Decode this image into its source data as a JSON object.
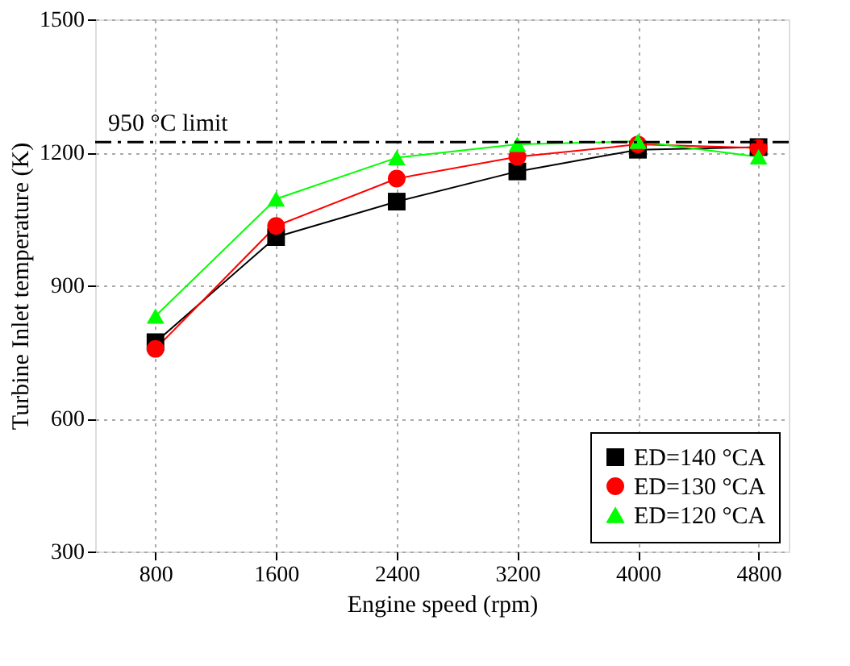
{
  "chart_data": {
    "type": "line",
    "xlabel": "Engine speed (rpm)",
    "ylabel": "Turbine Inlet temperature (K)",
    "x": [
      800,
      1600,
      2400,
      3200,
      4000,
      4800
    ],
    "series": [
      {
        "name": "ED=140 °CA",
        "color": "#000000",
        "marker": "square",
        "values": [
          772,
          1009,
          1089,
          1157,
          1206,
          1212
        ]
      },
      {
        "name": "ED=130 °CA",
        "color": "#ff0000",
        "marker": "circle",
        "values": [
          757,
          1034,
          1141,
          1190,
          1218,
          1210
        ]
      },
      {
        "name": "ED=120 °CA",
        "color": "#00ff00",
        "marker": "triangle",
        "values": [
          831,
          1095,
          1188,
          1218,
          1225,
          1190
        ]
      }
    ],
    "xlim": [
      400,
      5000
    ],
    "xticks": [
      800,
      1600,
      2400,
      3200,
      4000,
      4800
    ],
    "ylim": [
      300,
      1500
    ],
    "yticks": [
      300,
      600,
      900,
      1200,
      1500
    ],
    "ref_lines": [
      {
        "axis": "y",
        "value": 1223,
        "label": "950 °C limit",
        "color": "#000000",
        "line_style": "dashdot"
      }
    ],
    "grid": true,
    "legend": "bottom right",
    "line_style": "solid"
  }
}
